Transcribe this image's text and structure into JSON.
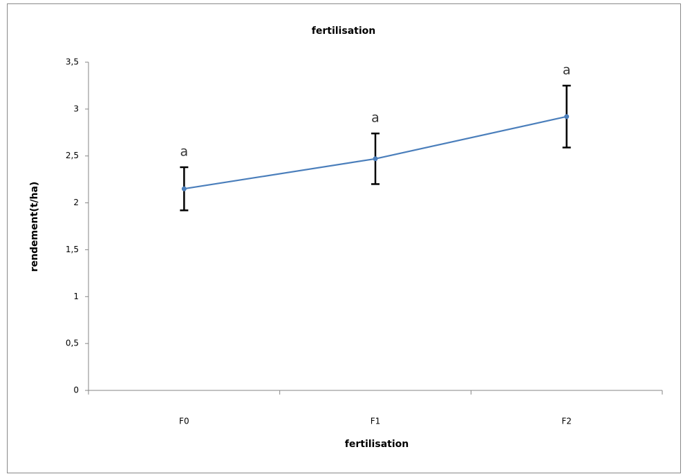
{
  "chart_data": {
    "type": "line",
    "title": "fertilisation",
    "x_label": "fertilisation",
    "y_label": "rendement(t/ha)",
    "categories": [
      "F0",
      "F1",
      "F2"
    ],
    "series": [
      {
        "name": "rendement",
        "color": "#4a7ebb",
        "values": [
          2.15,
          2.47,
          2.92
        ],
        "errors": [
          0.23,
          0.27,
          0.33
        ],
        "error_color": "#000000"
      }
    ],
    "annotations": [
      "a",
      "a",
      "a"
    ],
    "ylim": [
      0,
      3.5
    ],
    "yticks": [
      0,
      {
        "value": 0.5,
        "label": "0,5"
      },
      1,
      {
        "value": 1.5,
        "label": "1,5"
      },
      2,
      {
        "value": 2.5,
        "label": "2,5"
      },
      3,
      {
        "value": 3.5,
        "label": "3,5"
      }
    ],
    "grid": false
  }
}
